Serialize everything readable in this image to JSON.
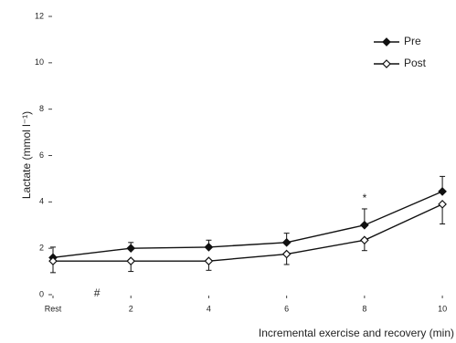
{
  "chart_data": {
    "type": "line",
    "x": [
      0,
      2,
      4,
      6,
      8,
      10
    ],
    "series": [
      {
        "name": "Pre",
        "color": "#111111",
        "marker": "filled-diamond",
        "values": [
          1.6,
          2.0,
          2.05,
          2.25,
          3.0,
          4.45
        ],
        "errors": [
          0.45,
          0.25,
          0.3,
          0.4,
          0.7,
          0.65
        ],
        "error_direction": "up"
      },
      {
        "name": "Post",
        "color": "#111111",
        "marker": "open-diamond",
        "values": [
          1.45,
          1.45,
          1.45,
          1.75,
          2.35,
          3.9
        ],
        "errors": [
          0.5,
          0.45,
          0.4,
          0.45,
          0.45,
          0.85
        ],
        "error_direction": "down"
      }
    ],
    "xlim": [
      0,
      10.35
    ],
    "ylim": [
      0,
      12
    ],
    "xticks": [
      {
        "value": 0,
        "label": "Rest"
      },
      2,
      4,
      6,
      8,
      10
    ],
    "yticks": [
      0,
      2,
      4,
      6,
      8,
      10,
      12
    ],
    "ylabel": "Lactate (mmol l⁻¹)",
    "xlabel": "Incremental exercise and recovery (min)",
    "annotations": [
      "*",
      "#"
    ],
    "legend": "top-right"
  }
}
